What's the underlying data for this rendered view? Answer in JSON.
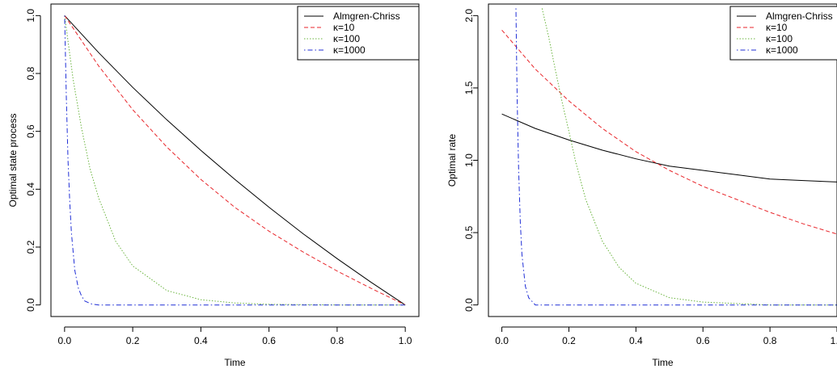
{
  "chart_data": [
    {
      "type": "line",
      "title": "",
      "xlabel": "Time",
      "ylabel": "Optimal state process",
      "xlim": [
        0,
        1
      ],
      "ylim": [
        0,
        1
      ],
      "x_ticks": [
        "0.0",
        "0.2",
        "0.4",
        "0.6",
        "0.8",
        "1.0"
      ],
      "y_ticks": [
        "0.0",
        "0.2",
        "0.4",
        "0.6",
        "0.8",
        "1.0"
      ],
      "grid": false,
      "legend_position": "top-right",
      "series": [
        {
          "name": "Almgren-Chriss",
          "color": "#000000",
          "dash": "solid",
          "x": [
            0,
            0.1,
            0.2,
            0.3,
            0.4,
            0.5,
            0.6,
            0.7,
            0.8,
            0.9,
            1.0
          ],
          "y": [
            1.0,
            0.872,
            0.752,
            0.64,
            0.534,
            0.434,
            0.338,
            0.246,
            0.16,
            0.078,
            0.0
          ]
        },
        {
          "name": "κ=10",
          "color": "#e8262b",
          "dash": "dashed",
          "x": [
            0,
            0.1,
            0.2,
            0.3,
            0.4,
            0.5,
            0.6,
            0.7,
            0.8,
            0.9,
            1.0
          ],
          "y": [
            1.0,
            0.826,
            0.675,
            0.546,
            0.434,
            0.337,
            0.255,
            0.183,
            0.117,
            0.057,
            0.0
          ]
        },
        {
          "name": "κ=100",
          "color": "#6ab43e",
          "dash": "dotted",
          "x": [
            0,
            0.025,
            0.05,
            0.075,
            0.1,
            0.15,
            0.2,
            0.3,
            0.4,
            0.5,
            0.6,
            0.8,
            1.0
          ],
          "y": [
            1.0,
            0.78,
            0.61,
            0.47,
            0.37,
            0.22,
            0.135,
            0.05,
            0.018,
            0.007,
            0.002,
            0.0,
            0.0
          ]
        },
        {
          "name": "κ=1000",
          "color": "#1f2ed6",
          "dash": "dotdash",
          "x": [
            0,
            0.005,
            0.01,
            0.015,
            0.02,
            0.03,
            0.04,
            0.05,
            0.06,
            0.08,
            0.1,
            0.5,
            1.0
          ],
          "y": [
            1.0,
            0.72,
            0.5,
            0.36,
            0.25,
            0.12,
            0.06,
            0.03,
            0.013,
            0.003,
            0.0,
            0.0,
            0.0
          ]
        }
      ]
    },
    {
      "type": "line",
      "title": "",
      "xlabel": "Time",
      "ylabel": "Optimal rate",
      "xlim": [
        0,
        1
      ],
      "ylim": [
        0,
        2
      ],
      "x_ticks": [
        "0.0",
        "0.2",
        "0.4",
        "0.6",
        "0.8",
        "1.0"
      ],
      "y_ticks": [
        "0.0",
        "0.5",
        "1.0",
        "1.5",
        "2.0"
      ],
      "grid": false,
      "legend_position": "top-right",
      "series": [
        {
          "name": "Almgren-Chriss",
          "color": "#000000",
          "dash": "solid",
          "x": [
            0,
            0.1,
            0.2,
            0.3,
            0.4,
            0.5,
            0.6,
            0.7,
            0.8,
            0.9,
            1.0
          ],
          "y": [
            1.32,
            1.22,
            1.14,
            1.07,
            1.01,
            0.96,
            0.93,
            0.9,
            0.87,
            0.86,
            0.85
          ]
        },
        {
          "name": "κ=10",
          "color": "#e8262b",
          "dash": "dashed",
          "x": [
            0,
            0.1,
            0.2,
            0.3,
            0.4,
            0.5,
            0.6,
            0.7,
            0.8,
            0.9,
            1.0
          ],
          "y": [
            1.9,
            1.63,
            1.41,
            1.22,
            1.06,
            0.93,
            0.82,
            0.73,
            0.64,
            0.56,
            0.49
          ]
        },
        {
          "name": "κ=100",
          "color": "#6ab43e",
          "dash": "dotted",
          "x": [
            0.12,
            0.14,
            0.16,
            0.18,
            0.2,
            0.22,
            0.25,
            0.3,
            0.35,
            0.4,
            0.5,
            0.6,
            0.8,
            1.0
          ],
          "y": [
            2.05,
            1.85,
            1.62,
            1.4,
            1.2,
            0.99,
            0.73,
            0.44,
            0.26,
            0.15,
            0.05,
            0.02,
            0.0,
            0.0
          ]
        },
        {
          "name": "κ=1000",
          "color": "#1f2ed6",
          "dash": "dotdash",
          "x": [
            0.042,
            0.044,
            0.046,
            0.048,
            0.05,
            0.055,
            0.06,
            0.07,
            0.08,
            0.1,
            0.15,
            0.5,
            1.0
          ],
          "y": [
            2.05,
            1.7,
            1.4,
            1.15,
            0.94,
            0.57,
            0.35,
            0.13,
            0.05,
            0.0,
            0.0,
            0.0,
            0.0
          ]
        }
      ]
    }
  ]
}
